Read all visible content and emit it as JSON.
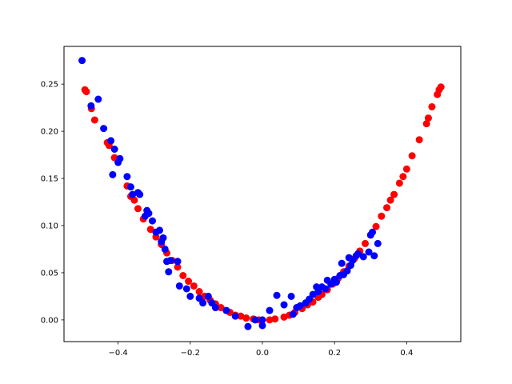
{
  "chart_data": {
    "type": "scatter",
    "title": "",
    "xlabel": "",
    "ylabel": "",
    "xlim": [
      -0.55,
      0.55
    ],
    "ylim": [
      -0.023,
      0.29
    ],
    "grid": false,
    "legend": "none",
    "x_ticks": [
      -0.4,
      -0.2,
      0.0,
      0.2,
      0.4
    ],
    "x_tick_labels": [
      "−0.4",
      "−0.2",
      "0.0",
      "0.2",
      "0.4"
    ],
    "y_ticks": [
      0.0,
      0.05,
      0.1,
      0.15,
      0.2,
      0.25
    ],
    "y_tick_labels": [
      "0.00",
      "0.05",
      "0.10",
      "0.15",
      "0.20",
      "0.25"
    ],
    "series": [
      {
        "color": "#ff0000",
        "points": [
          [
            -0.492,
            0.244
          ],
          [
            -0.488,
            0.242
          ],
          [
            -0.474,
            0.224
          ],
          [
            -0.465,
            0.212
          ],
          [
            -0.43,
            0.188
          ],
          [
            -0.425,
            0.185
          ],
          [
            -0.41,
            0.172
          ],
          [
            -0.375,
            0.142
          ],
          [
            -0.365,
            0.131
          ],
          [
            -0.355,
            0.127
          ],
          [
            -0.345,
            0.118
          ],
          [
            -0.33,
            0.107
          ],
          [
            -0.31,
            0.096
          ],
          [
            -0.295,
            0.088
          ],
          [
            -0.28,
            0.08
          ],
          [
            -0.265,
            0.071
          ],
          [
            -0.25,
            0.063
          ],
          [
            -0.235,
            0.056
          ],
          [
            -0.22,
            0.047
          ],
          [
            -0.205,
            0.041
          ],
          [
            -0.19,
            0.036
          ],
          [
            -0.175,
            0.03
          ],
          [
            -0.16,
            0.025
          ],
          [
            -0.145,
            0.021
          ],
          [
            -0.13,
            0.017
          ],
          [
            -0.115,
            0.013
          ],
          [
            -0.1,
            0.01
          ],
          [
            -0.09,
            0.008
          ],
          [
            -0.075,
            0.005
          ],
          [
            -0.06,
            0.004
          ],
          [
            -0.045,
            0.002
          ],
          [
            -0.025,
            0.001
          ],
          [
            -0.01,
            0.0
          ],
          [
            0.02,
            0.0
          ],
          [
            0.035,
            0.001
          ],
          [
            0.06,
            0.003
          ],
          [
            0.075,
            0.005
          ],
          [
            0.09,
            0.008
          ],
          [
            0.11,
            0.012
          ],
          [
            0.125,
            0.016
          ],
          [
            0.14,
            0.019
          ],
          [
            0.155,
            0.024
          ],
          [
            0.165,
            0.027
          ],
          [
            0.18,
            0.032
          ],
          [
            0.195,
            0.038
          ],
          [
            0.21,
            0.044
          ],
          [
            0.225,
            0.051
          ],
          [
            0.24,
            0.057
          ],
          [
            0.255,
            0.065
          ],
          [
            0.27,
            0.073
          ],
          [
            0.285,
            0.081
          ],
          [
            0.3,
            0.09
          ],
          [
            0.315,
            0.099
          ],
          [
            0.33,
            0.11
          ],
          [
            0.345,
            0.119
          ],
          [
            0.355,
            0.127
          ],
          [
            0.365,
            0.133
          ],
          [
            0.38,
            0.145
          ],
          [
            0.39,
            0.152
          ],
          [
            0.4,
            0.16
          ],
          [
            0.415,
            0.174
          ],
          [
            0.435,
            0.191
          ],
          [
            0.455,
            0.208
          ],
          [
            0.46,
            0.214
          ],
          [
            0.47,
            0.226
          ],
          [
            0.485,
            0.239
          ],
          [
            0.49,
            0.244
          ],
          [
            0.495,
            0.247
          ]
        ]
      },
      {
        "color": "#0000ff",
        "points": [
          [
            -0.5,
            0.275
          ],
          [
            -0.475,
            0.227
          ],
          [
            -0.455,
            0.234
          ],
          [
            -0.44,
            0.203
          ],
          [
            -0.42,
            0.19
          ],
          [
            -0.41,
            0.181
          ],
          [
            -0.395,
            0.171
          ],
          [
            -0.4,
            0.167
          ],
          [
            -0.415,
            0.154
          ],
          [
            -0.375,
            0.152
          ],
          [
            -0.365,
            0.141
          ],
          [
            -0.36,
            0.133
          ],
          [
            -0.345,
            0.135
          ],
          [
            -0.34,
            0.133
          ],
          [
            -0.32,
            0.116
          ],
          [
            -0.315,
            0.113
          ],
          [
            -0.325,
            0.11
          ],
          [
            -0.305,
            0.105
          ],
          [
            -0.295,
            0.093
          ],
          [
            -0.285,
            0.095
          ],
          [
            -0.275,
            0.087
          ],
          [
            -0.28,
            0.083
          ],
          [
            -0.27,
            0.075
          ],
          [
            -0.255,
            0.063
          ],
          [
            -0.265,
            0.062
          ],
          [
            -0.235,
            0.062
          ],
          [
            -0.26,
            0.051
          ],
          [
            -0.23,
            0.036
          ],
          [
            -0.21,
            0.033
          ],
          [
            -0.2,
            0.025
          ],
          [
            -0.175,
            0.023
          ],
          [
            -0.15,
            0.025
          ],
          [
            -0.165,
            0.018
          ],
          [
            -0.14,
            0.018
          ],
          [
            -0.13,
            0.013
          ],
          [
            -0.1,
            0.01
          ],
          [
            -0.075,
            0.004
          ],
          [
            -0.04,
            -0.007
          ],
          [
            -0.02,
            0.0
          ],
          [
            0.0,
            0.0
          ],
          [
            0.0,
            -0.006
          ],
          [
            0.02,
            0.01
          ],
          [
            0.04,
            0.026
          ],
          [
            0.06,
            0.016
          ],
          [
            0.08,
            0.025
          ],
          [
            0.085,
            0.006
          ],
          [
            0.095,
            0.013
          ],
          [
            0.105,
            0.015
          ],
          [
            0.12,
            0.018
          ],
          [
            0.13,
            0.022
          ],
          [
            0.14,
            0.027
          ],
          [
            0.15,
            0.035
          ],
          [
            0.155,
            0.03
          ],
          [
            0.165,
            0.035
          ],
          [
            0.175,
            0.033
          ],
          [
            0.18,
            0.042
          ],
          [
            0.19,
            0.038
          ],
          [
            0.2,
            0.043
          ],
          [
            0.205,
            0.04
          ],
          [
            0.215,
            0.047
          ],
          [
            0.22,
            0.06
          ],
          [
            0.225,
            0.048
          ],
          [
            0.235,
            0.052
          ],
          [
            0.24,
            0.066
          ],
          [
            0.245,
            0.058
          ],
          [
            0.25,
            0.063
          ],
          [
            0.26,
            0.068
          ],
          [
            0.265,
            0.07
          ],
          [
            0.28,
            0.067
          ],
          [
            0.295,
            0.072
          ],
          [
            0.3,
            0.09
          ],
          [
            0.31,
            0.068
          ],
          [
            0.32,
            0.081
          ],
          [
            0.305,
            0.093
          ]
        ]
      }
    ]
  }
}
